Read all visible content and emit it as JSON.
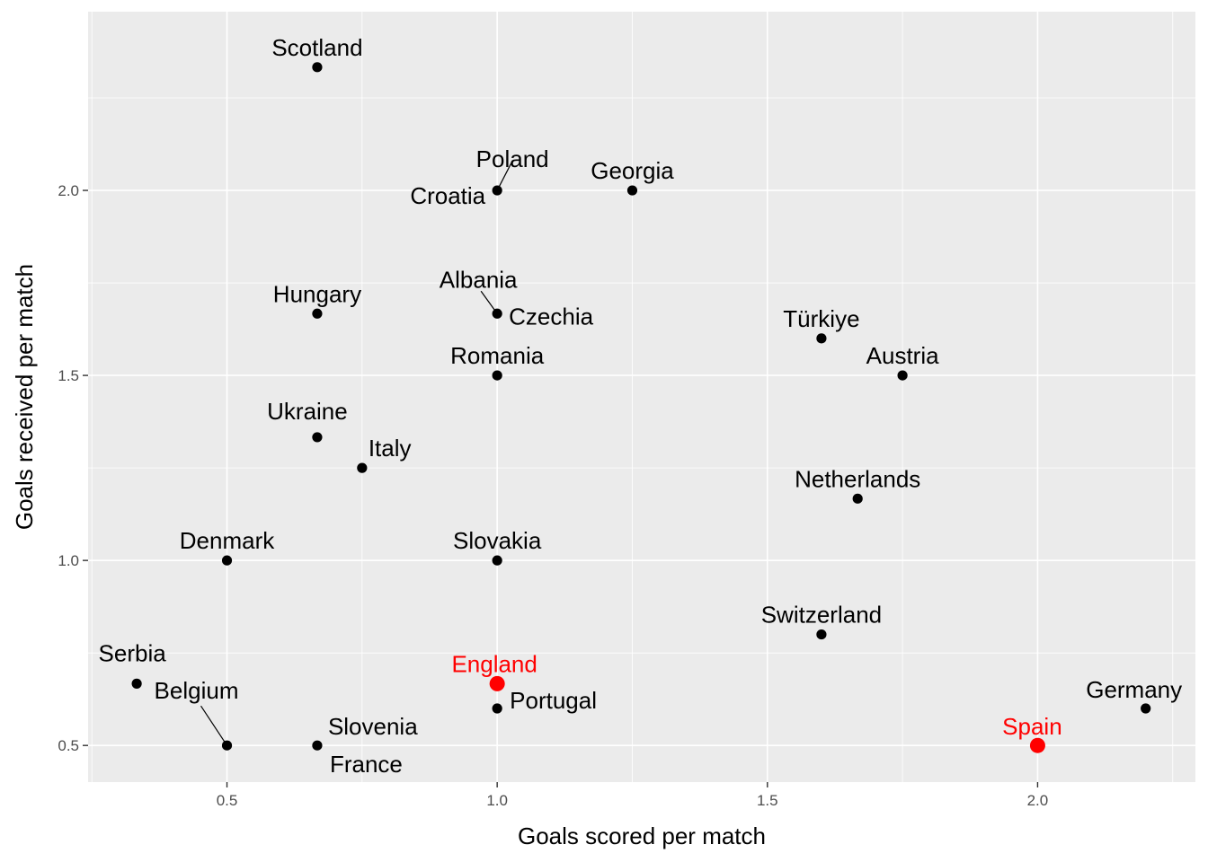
{
  "chart_data": {
    "type": "scatter",
    "title": "",
    "xlabel": "Goals scored per match",
    "ylabel": "Goals received per match",
    "xlim": [
      0.243,
      2.292
    ],
    "ylim": [
      0.401,
      2.483
    ],
    "xticks": [
      "0.5",
      "1.0",
      "1.5",
      "2.0"
    ],
    "yticks": [
      "0.5",
      "1.0",
      "1.5",
      "2.0"
    ],
    "grid": true,
    "legend": "none",
    "colors": {
      "default": "#000000",
      "highlight": "#ff0000",
      "panel": "#ebebeb",
      "grid": "#ffffff"
    },
    "points": [
      {
        "label": "Scotland",
        "x": 0.667,
        "y": 2.333,
        "highlight": false
      },
      {
        "label": "Poland",
        "x": 1.0,
        "y": 2.0,
        "highlight": false
      },
      {
        "label": "Croatia",
        "x": 1.0,
        "y": 2.0,
        "highlight": false
      },
      {
        "label": "Georgia",
        "x": 1.25,
        "y": 2.0,
        "highlight": false
      },
      {
        "label": "Hungary",
        "x": 0.667,
        "y": 1.667,
        "highlight": false
      },
      {
        "label": "Albania",
        "x": 1.0,
        "y": 1.667,
        "highlight": false
      },
      {
        "label": "Czechia",
        "x": 1.0,
        "y": 1.667,
        "highlight": false
      },
      {
        "label": "Türkiye",
        "x": 1.6,
        "y": 1.6,
        "highlight": false
      },
      {
        "label": "Romania",
        "x": 1.0,
        "y": 1.5,
        "highlight": false
      },
      {
        "label": "Austria",
        "x": 1.75,
        "y": 1.5,
        "highlight": false
      },
      {
        "label": "Ukraine",
        "x": 0.667,
        "y": 1.333,
        "highlight": false
      },
      {
        "label": "Italy",
        "x": 0.75,
        "y": 1.25,
        "highlight": false
      },
      {
        "label": "Netherlands",
        "x": 1.667,
        "y": 1.167,
        "highlight": false
      },
      {
        "label": "Denmark",
        "x": 0.5,
        "y": 1.0,
        "highlight": false
      },
      {
        "label": "Slovakia",
        "x": 1.0,
        "y": 1.0,
        "highlight": false
      },
      {
        "label": "Switzerland",
        "x": 1.6,
        "y": 0.8,
        "highlight": false
      },
      {
        "label": "Serbia",
        "x": 0.333,
        "y": 0.667,
        "highlight": false
      },
      {
        "label": "England",
        "x": 1.0,
        "y": 0.667,
        "highlight": true
      },
      {
        "label": "Portugal",
        "x": 1.0,
        "y": 0.6,
        "highlight": false
      },
      {
        "label": "Germany",
        "x": 2.2,
        "y": 0.6,
        "highlight": false
      },
      {
        "label": "Belgium",
        "x": 0.5,
        "y": 0.5,
        "highlight": false
      },
      {
        "label": "Slovenia",
        "x": 0.667,
        "y": 0.5,
        "highlight": false
      },
      {
        "label": "France",
        "x": 0.667,
        "y": 0.5,
        "highlight": false
      },
      {
        "label": "Spain",
        "x": 2.0,
        "y": 0.5,
        "highlight": true
      }
    ]
  }
}
